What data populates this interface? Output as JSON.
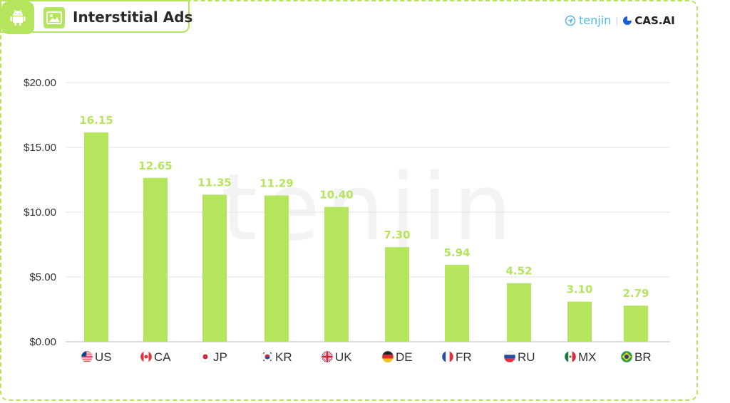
{
  "header": {
    "title": "Interstitial Ads",
    "platform_icon": "android-icon",
    "format_icon": "image-ad-icon"
  },
  "brands": {
    "tenjin": "tenjin",
    "cas": "CAS.AI"
  },
  "watermark": "tenjin",
  "colors": {
    "accent": "#b4e55c",
    "bar": "#b4e55c",
    "tenjin_blue": "#55b7e6"
  },
  "chart_data": {
    "type": "bar",
    "title": "Interstitial Ads",
    "categories": [
      "US",
      "CA",
      "JP",
      "KR",
      "UK",
      "DE",
      "FR",
      "RU",
      "MX",
      "BR"
    ],
    "flag_icons": [
      "us-flag-icon",
      "ca-flag-icon",
      "jp-flag-icon",
      "kr-flag-icon",
      "uk-flag-icon",
      "de-flag-icon",
      "fr-flag-icon",
      "ru-flag-icon",
      "mx-flag-icon",
      "br-flag-icon"
    ],
    "values": [
      16.15,
      12.65,
      11.35,
      11.29,
      10.4,
      7.3,
      5.94,
      4.52,
      3.1,
      2.79
    ],
    "value_labels": [
      "16.15",
      "12.65",
      "11.35",
      "11.29",
      "10.40",
      "7.30",
      "5.94",
      "4.52",
      "3.10",
      "2.79"
    ],
    "ylim": [
      0,
      20
    ],
    "yticks": [
      0,
      5,
      10,
      15,
      20
    ],
    "ytick_labels": [
      "$0.00",
      "$5.00",
      "$10.00",
      "$15.00",
      "$20.00"
    ],
    "xlabel": "",
    "ylabel": "",
    "grid": true,
    "legend": "none"
  }
}
